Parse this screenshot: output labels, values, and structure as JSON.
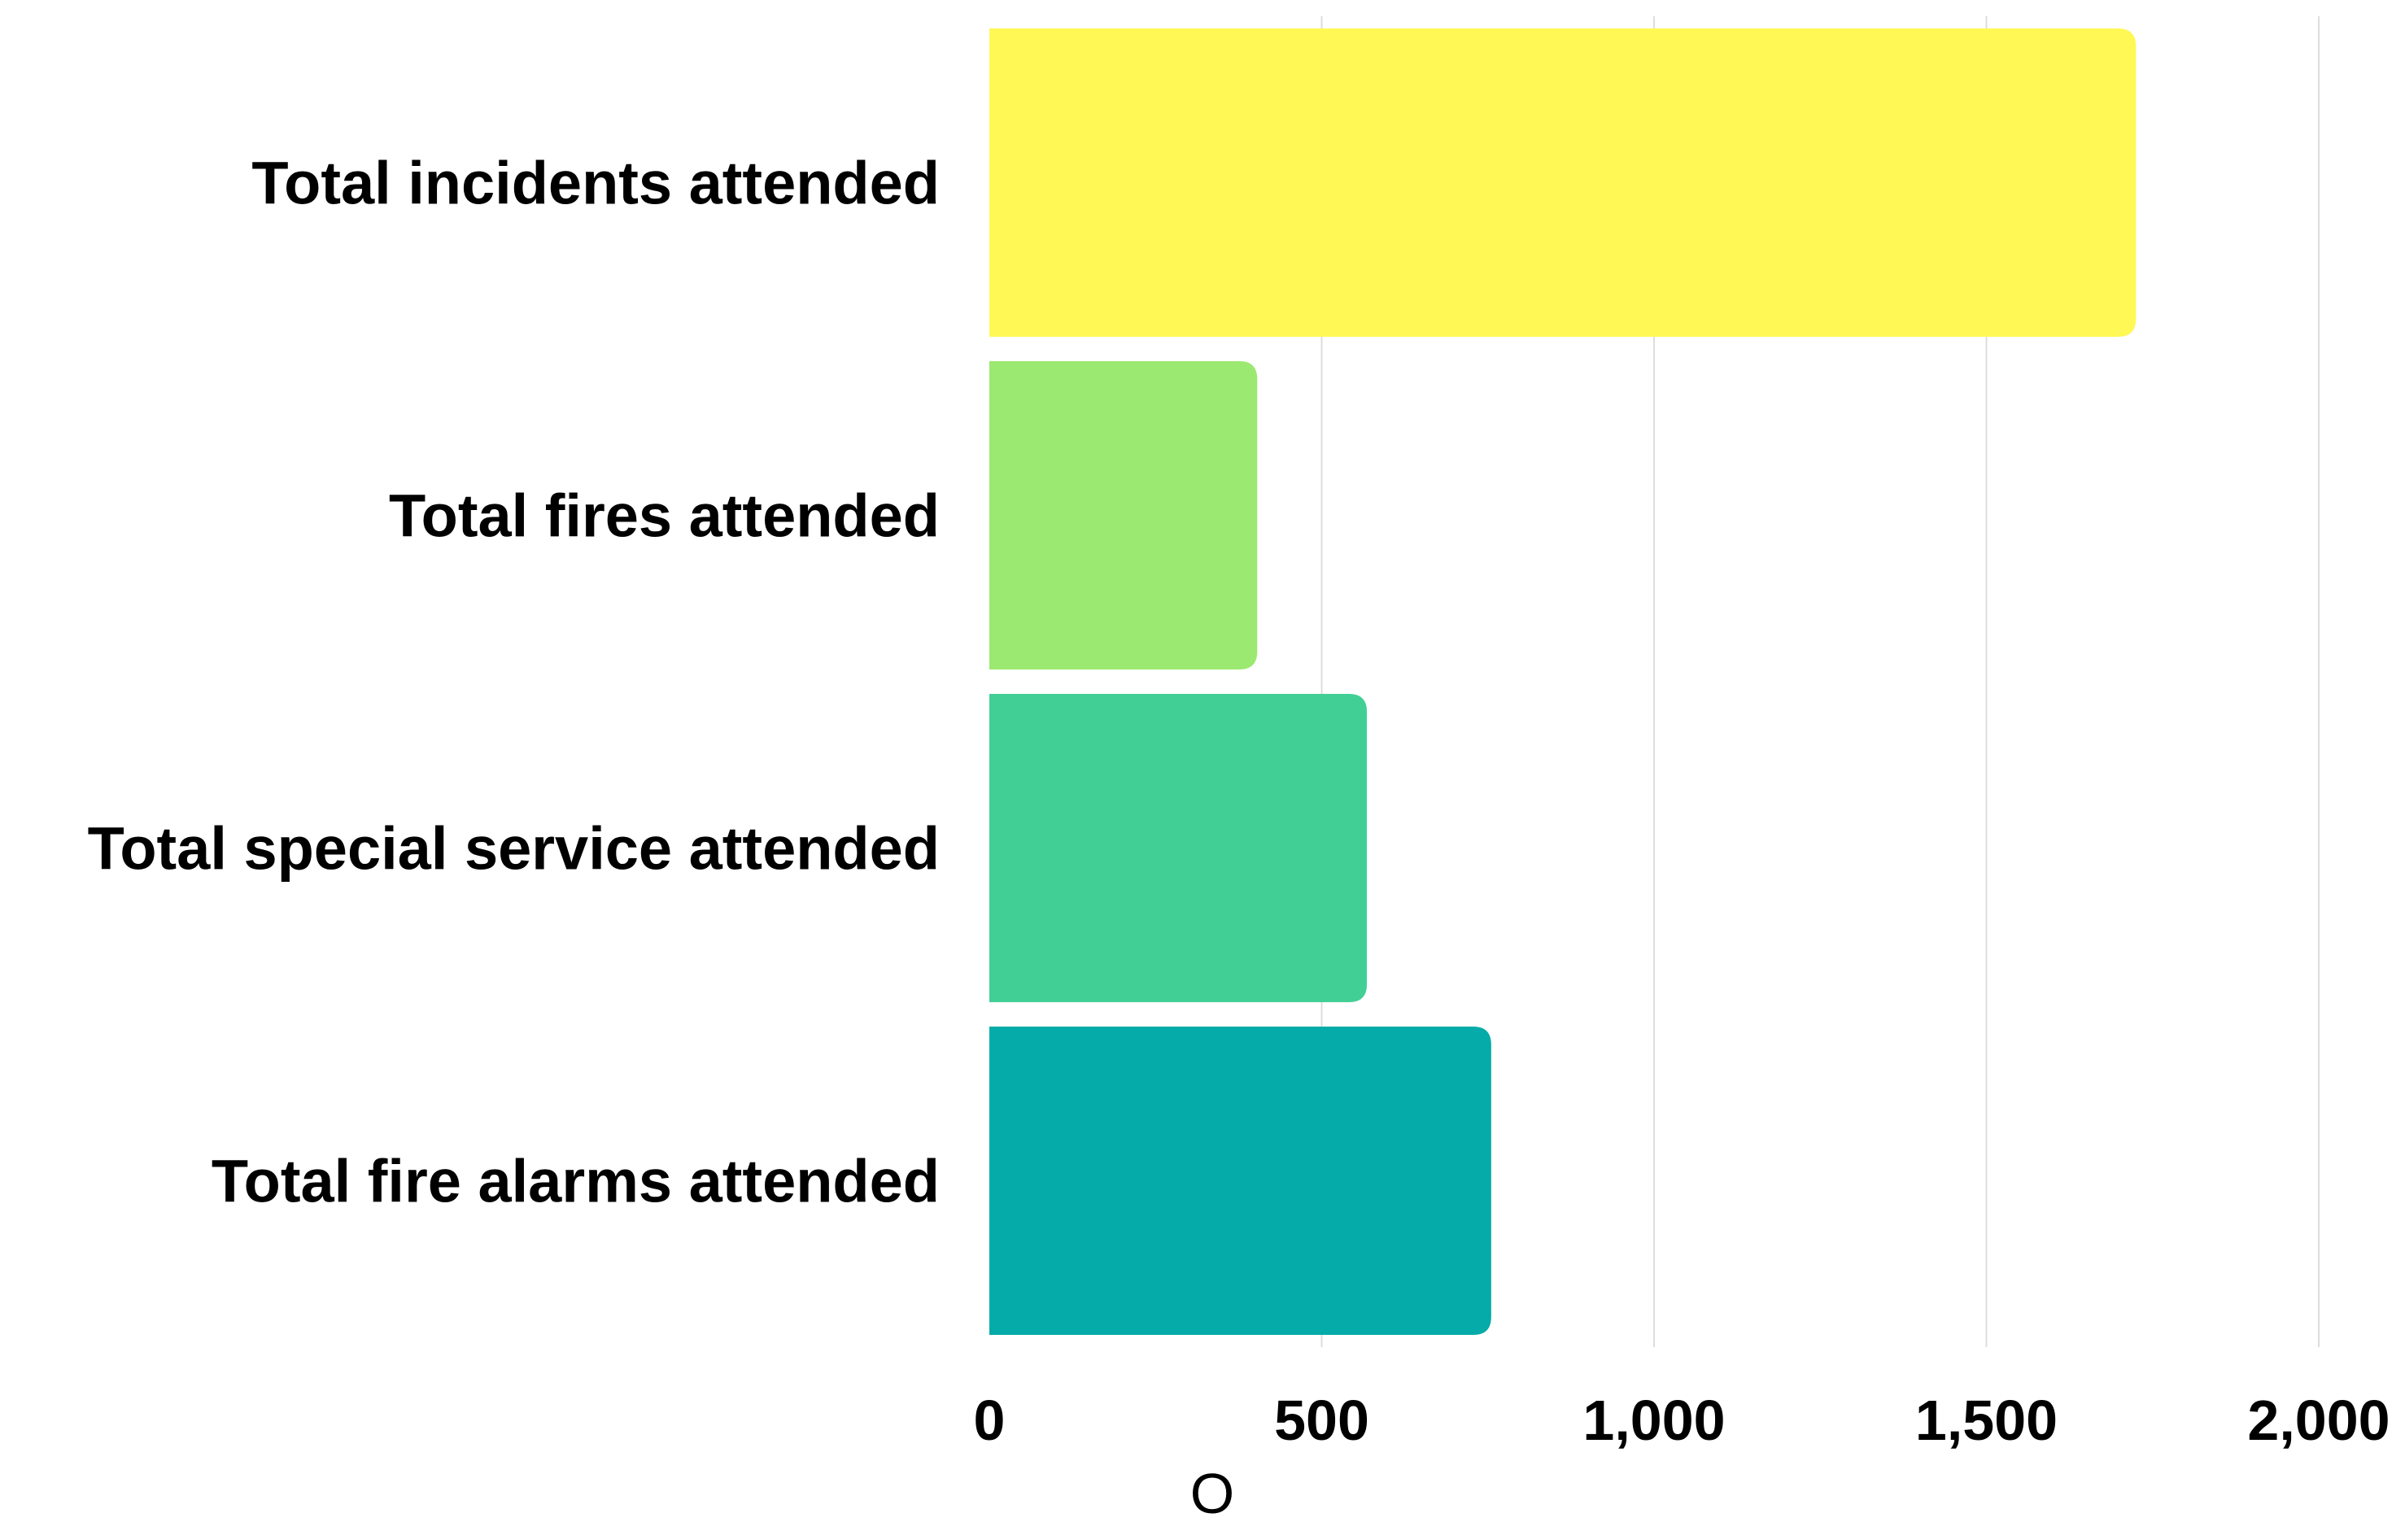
{
  "chart_data": {
    "type": "bar",
    "orientation": "horizontal",
    "categories": [
      "Total incidents attended",
      "Total fires attended",
      "Total special service attended",
      "Total fire alarms attended"
    ],
    "values": [
      1725,
      403,
      568,
      755
    ],
    "colors": [
      "#fff855",
      "#9be970",
      "#42cf96",
      "#04aba8"
    ],
    "xlabel": "O",
    "ylabel": "",
    "xlim": [
      0,
      2000
    ],
    "xticks": [
      0,
      500,
      1000,
      1500,
      2000
    ],
    "xtick_labels": [
      "0",
      "500",
      "1,000",
      "1,500",
      "2,000"
    ],
    "grid": true
  }
}
